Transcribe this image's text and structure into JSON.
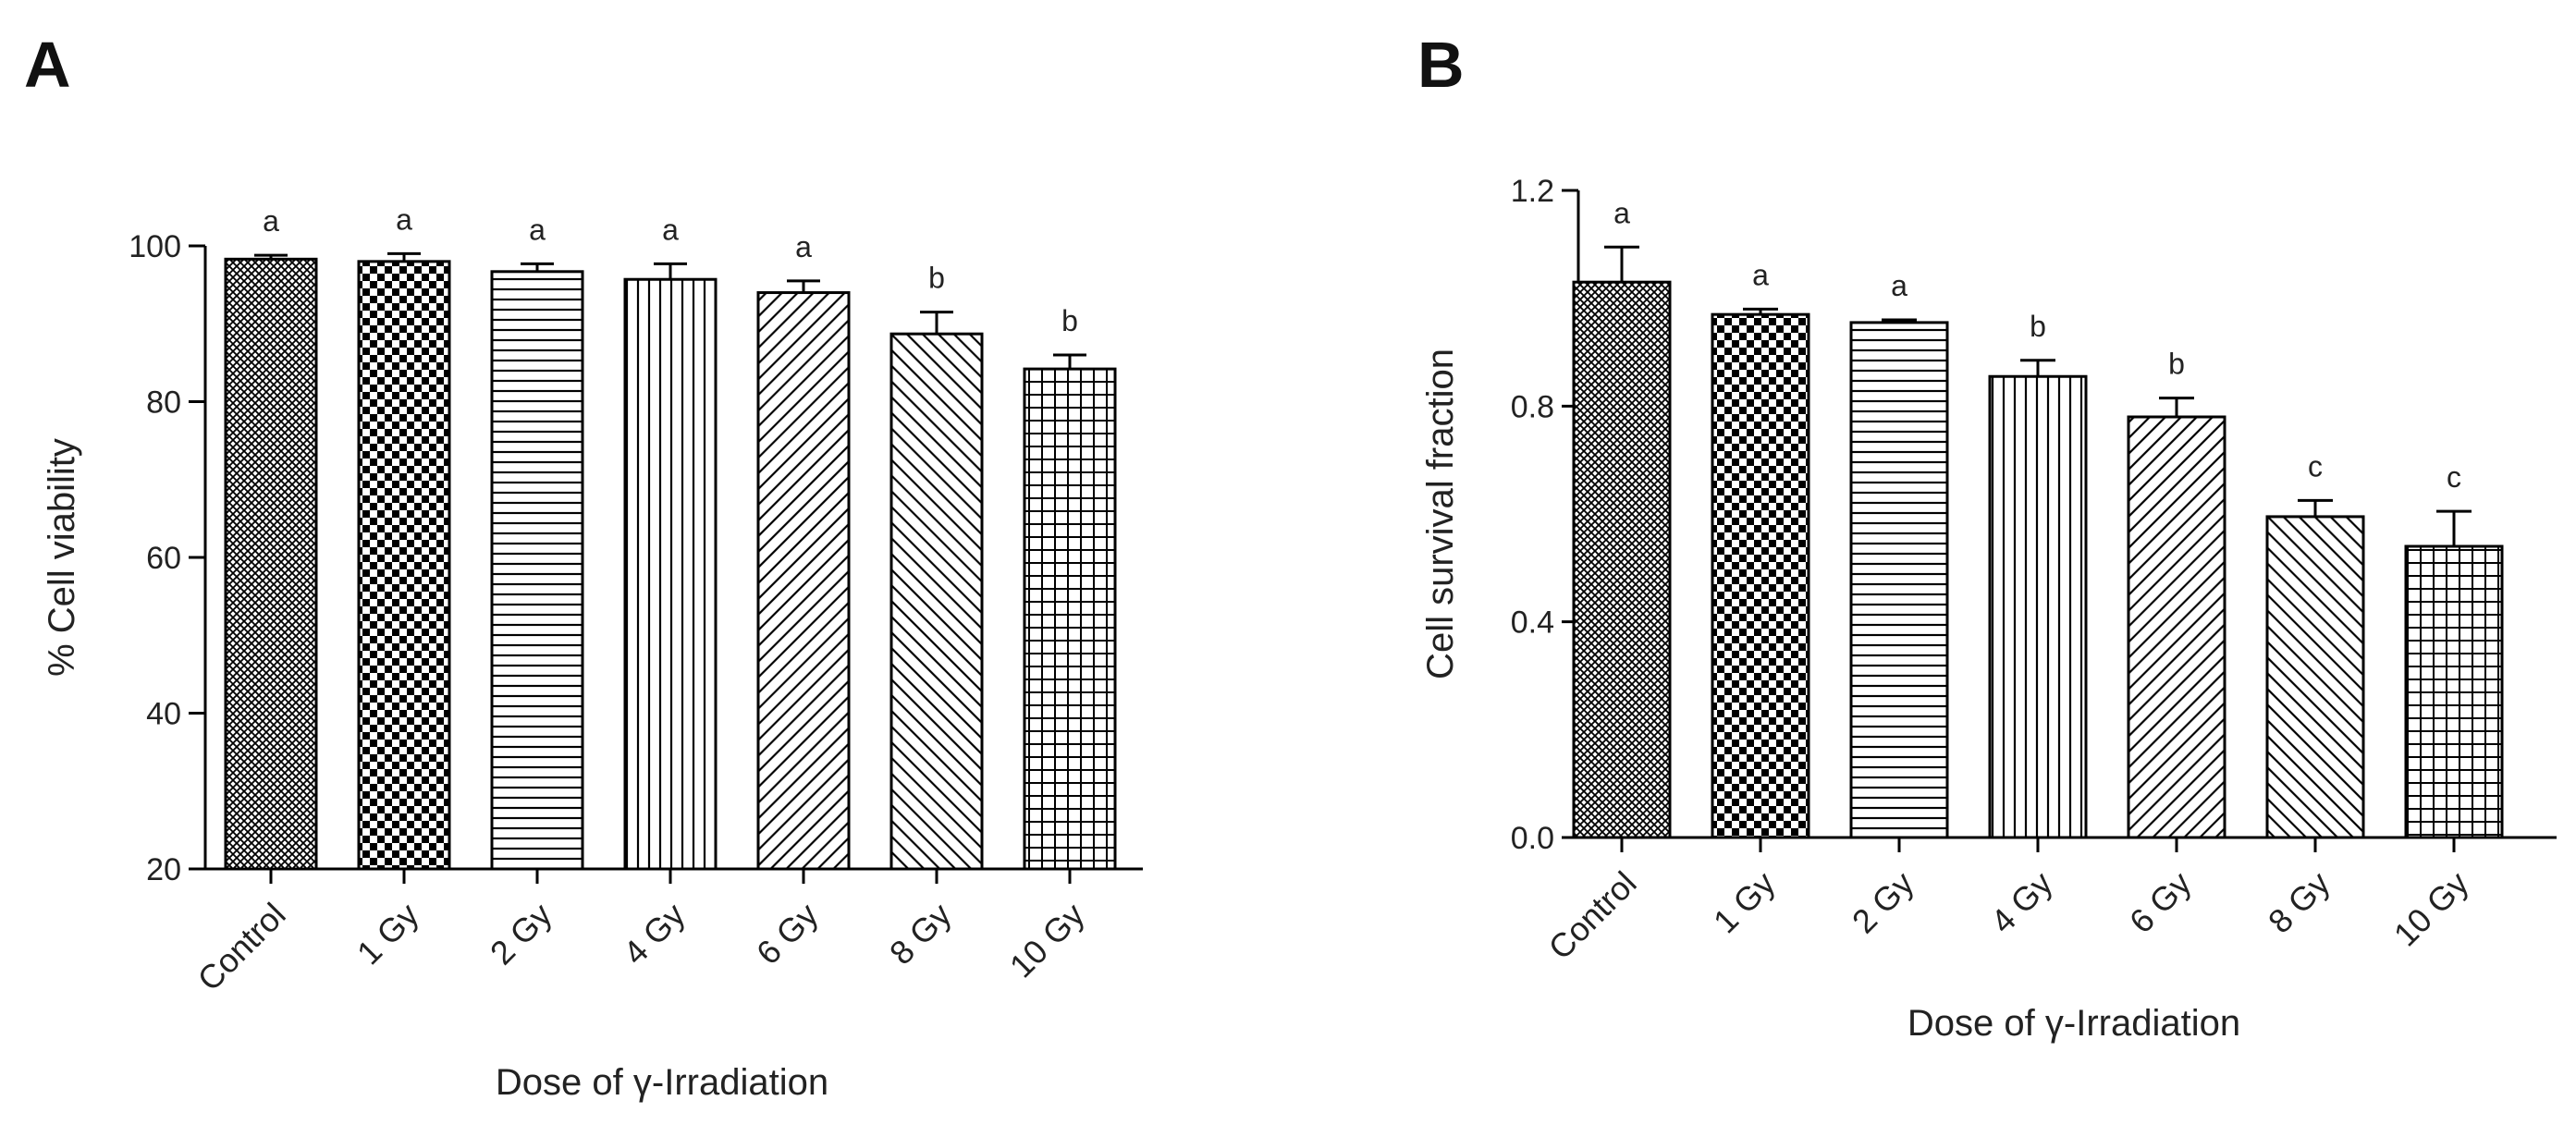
{
  "chart_data": [
    {
      "panel": "A",
      "type": "bar",
      "categories": [
        "Control",
        "1 Gy",
        "2 Gy",
        "4 Gy",
        "6 Gy",
        "8 Gy",
        "10 Gy"
      ],
      "values": [
        98.3,
        98.0,
        96.7,
        95.7,
        94.0,
        88.7,
        84.2
      ],
      "errors": [
        0.5,
        1.0,
        1.0,
        2.0,
        1.5,
        2.8,
        1.8
      ],
      "significance": [
        "a",
        "a",
        "a",
        "a",
        "a",
        "b",
        "b"
      ],
      "ylabel": "% Cell viability",
      "xlabel": "Dose of γ-Irradiation",
      "ylim": [
        20,
        100
      ],
      "yticks": [
        20,
        40,
        60,
        80,
        100
      ],
      "ytick_labels": [
        "20",
        "40",
        "60",
        "80",
        "100"
      ]
    },
    {
      "panel": "B",
      "type": "bar",
      "categories": [
        "Control",
        "1 Gy",
        "2 Gy",
        "4 Gy",
        "6 Gy",
        "8 Gy",
        "10 Gy"
      ],
      "values": [
        1.03,
        0.97,
        0.955,
        0.855,
        0.78,
        0.595,
        0.54
      ],
      "errors": [
        0.065,
        0.01,
        0.005,
        0.03,
        0.035,
        0.03,
        0.065
      ],
      "significance": [
        "a",
        "a",
        "a",
        "b",
        "b",
        "c",
        "c"
      ],
      "ylabel": "Cell survival fraction",
      "xlabel": "Dose of γ-Irradiation",
      "ylim": [
        0,
        1.2
      ],
      "yticks": [
        0,
        0.4,
        0.8,
        1.2
      ],
      "ytick_labels": [
        "0.0",
        "0.4",
        "0.8",
        "1.2"
      ]
    }
  ],
  "panels": {
    "a_label": "A",
    "b_label": "B"
  },
  "patterns": [
    "crosshatch-fine",
    "checkerboard",
    "horizontal",
    "vertical",
    "diagonal-up",
    "diagonal-down",
    "grid"
  ]
}
